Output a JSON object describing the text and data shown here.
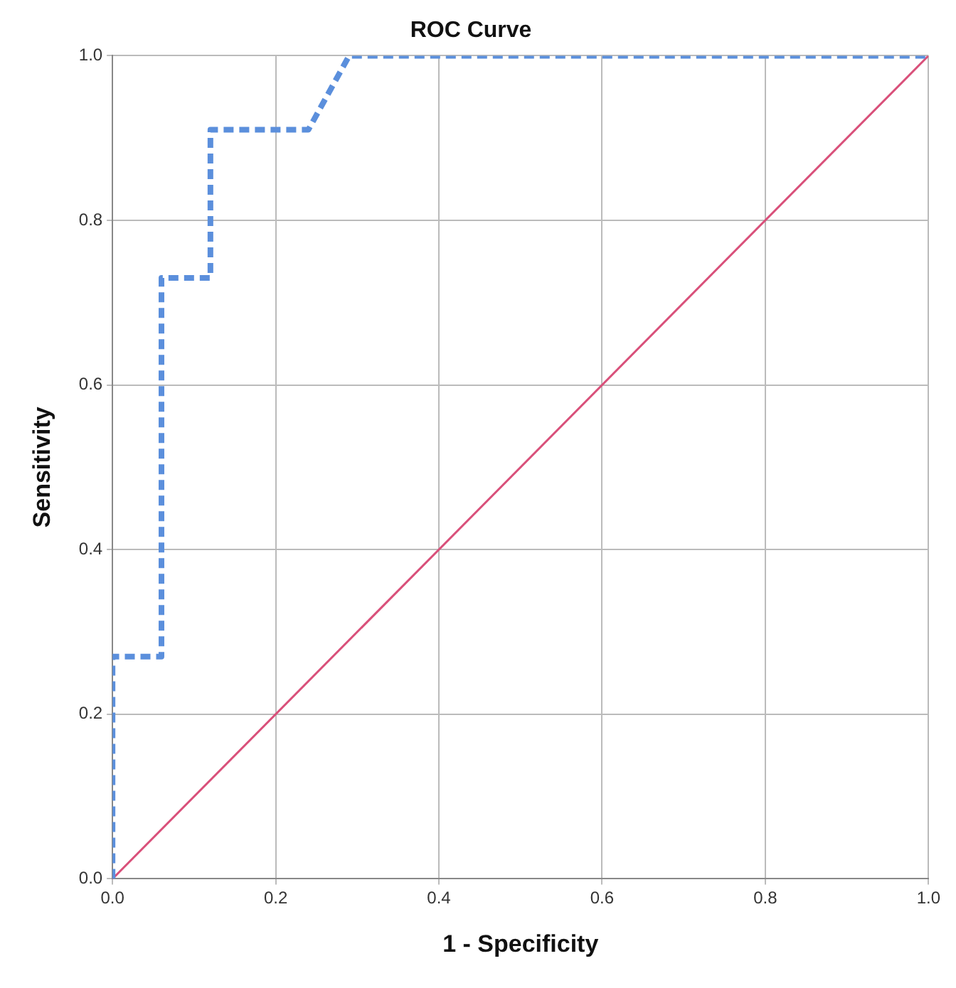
{
  "chart_data": {
    "type": "line",
    "title": "ROC Curve",
    "xlabel": "1 - Specificity",
    "ylabel": "Sensitivity",
    "series": [
      {
        "color": "#5b8fdc",
        "line_style": "dashed",
        "x": [
          0,
          0,
          0.06,
          0.06,
          0.12,
          0.12,
          0.24,
          0.29,
          1
        ],
        "values": [
          0,
          0.27,
          0.27,
          0.73,
          0.73,
          0.91,
          0.91,
          1,
          1
        ]
      },
      {
        "color": "#d9507a",
        "line_style": "solid",
        "x": [
          0,
          1
        ],
        "values": [
          0,
          1
        ]
      }
    ],
    "xlim": [
      0,
      1
    ],
    "ylim": [
      0,
      1
    ],
    "xticks": [
      {
        "value": 0,
        "label": "0.0"
      },
      {
        "value": 0.2,
        "label": "0.2"
      },
      {
        "value": 0.4,
        "label": "0.4"
      },
      {
        "value": 0.6,
        "label": "0.6"
      },
      {
        "value": 0.8,
        "label": "0.8"
      },
      {
        "value": 1,
        "label": "1.0"
      }
    ],
    "yticks": [
      {
        "value": 0,
        "label": "0.0"
      },
      {
        "value": 0.2,
        "label": "0.2"
      },
      {
        "value": 0.4,
        "label": "0.4"
      },
      {
        "value": 0.6,
        "label": "0.6"
      },
      {
        "value": 0.8,
        "label": "0.8"
      },
      {
        "value": 1,
        "label": "1.0"
      }
    ],
    "grid": true,
    "legend": false,
    "marker": "none"
  }
}
